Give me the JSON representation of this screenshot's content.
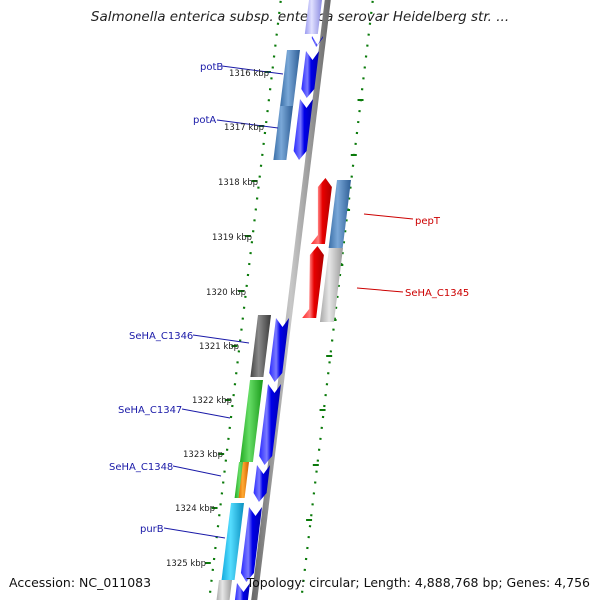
{
  "map": {
    "title": "Salmonella enterica subsp. enterica serovar Heidelberg str. ...",
    "accession": "Accession: NC_011083",
    "summary": "Topology: circular; Length: 4,888,768 bp; Genes: 4,756",
    "scale_labels": [
      "1316 kbp",
      "1317 kbp",
      "1318 kbp",
      "1319 kbp",
      "1320 kbp",
      "1321 kbp",
      "1322 kbp",
      "1323 kbp",
      "1324 kbp",
      "1325 kbp"
    ],
    "gene_labels": [
      {
        "name": "potB",
        "strand": "forward"
      },
      {
        "name": "potA",
        "strand": "forward"
      },
      {
        "name": "pepT",
        "strand": "reverse"
      },
      {
        "name": "SeHA_C1345",
        "strand": "reverse"
      },
      {
        "name": "SeHA_C1346",
        "strand": "forward"
      },
      {
        "name": "SeHA_C1347",
        "strand": "forward"
      },
      {
        "name": "SeHA_C1348",
        "strand": "forward"
      },
      {
        "name": "purB",
        "strand": "forward"
      }
    ],
    "colors": {
      "forward_label": "#1a1aa8",
      "reverse_label": "#cc0000",
      "forward_arrow": "#0a0af0",
      "reverse_arrow": "#f00a0a",
      "dots": "#0a7a0a",
      "backbone": "#8a8a8a"
    }
  }
}
